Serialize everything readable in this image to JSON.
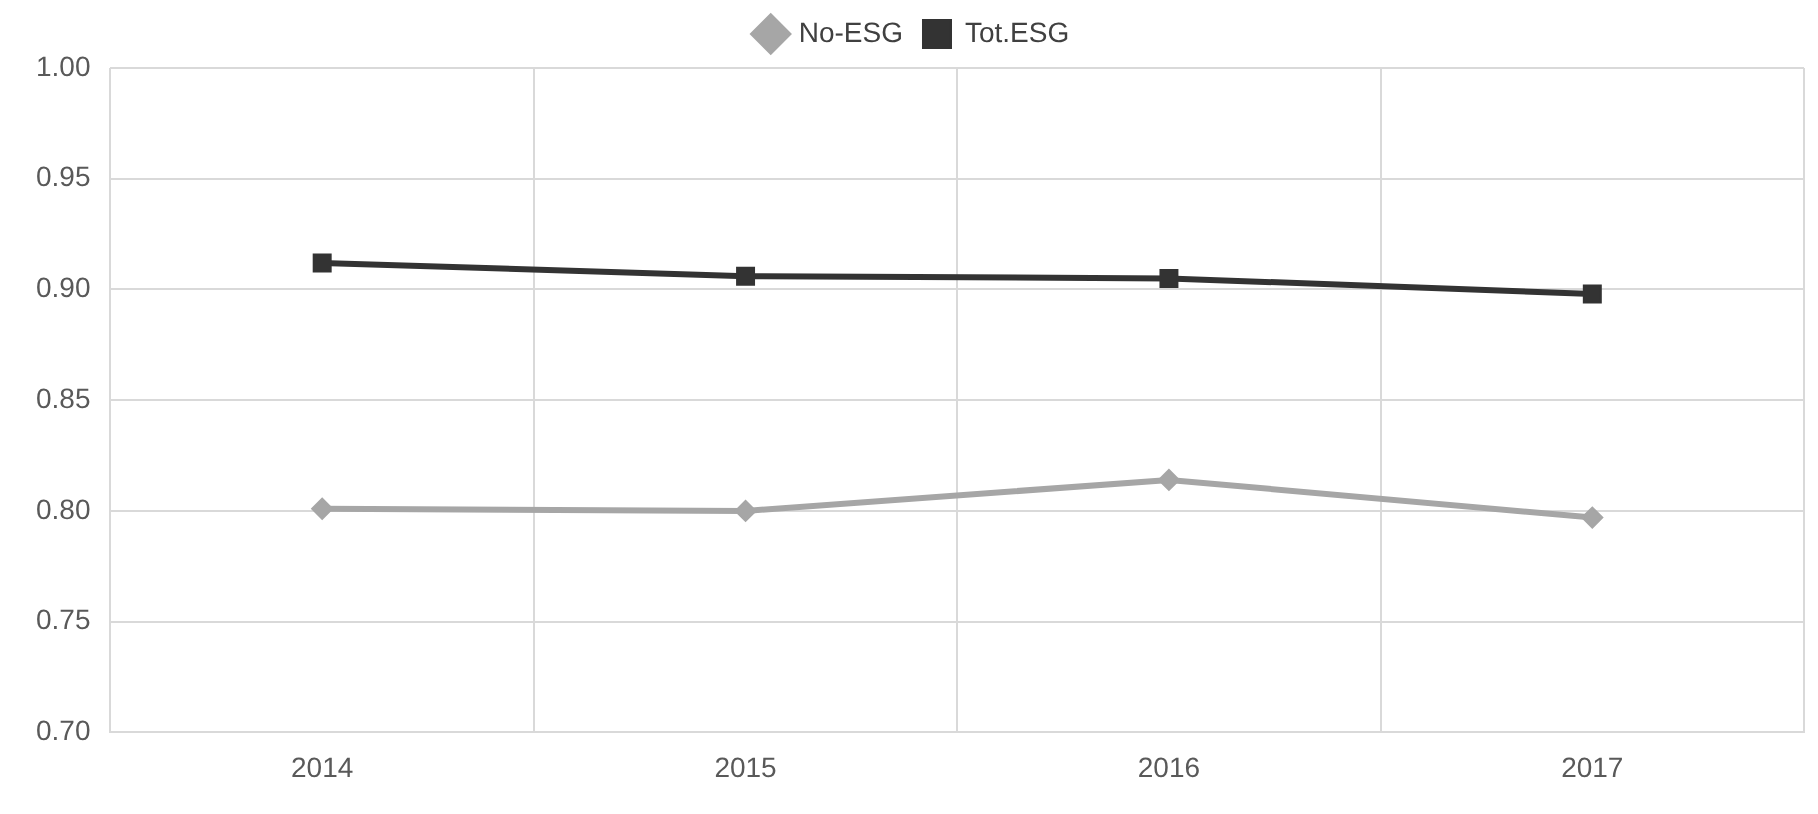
{
  "chart_data": {
    "type": "line",
    "categories": [
      "2014",
      "2015",
      "2016",
      "2017"
    ],
    "series": [
      {
        "name": "No-ESG",
        "color": "#a6a6a6",
        "marker": "diamond",
        "values": [
          0.801,
          0.8,
          0.814,
          0.797
        ]
      },
      {
        "name": "Tot.ESG",
        "color": "#333333",
        "marker": "square",
        "values": [
          0.912,
          0.906,
          0.905,
          0.898
        ]
      }
    ],
    "ylim": [
      0.7,
      1.0
    ],
    "yticks": [
      {
        "value": 0.7,
        "label": "0.70"
      },
      {
        "value": 0.75,
        "label": "0.75"
      },
      {
        "value": 0.8,
        "label": "0.80"
      },
      {
        "value": 0.85,
        "label": "0.85"
      },
      {
        "value": 0.9,
        "label": "0.90"
      },
      {
        "value": 0.95,
        "label": "0.95"
      },
      {
        "value": 1.0,
        "label": "1.00"
      }
    ],
    "grid": true,
    "legend": "top",
    "line_style": "solid"
  }
}
